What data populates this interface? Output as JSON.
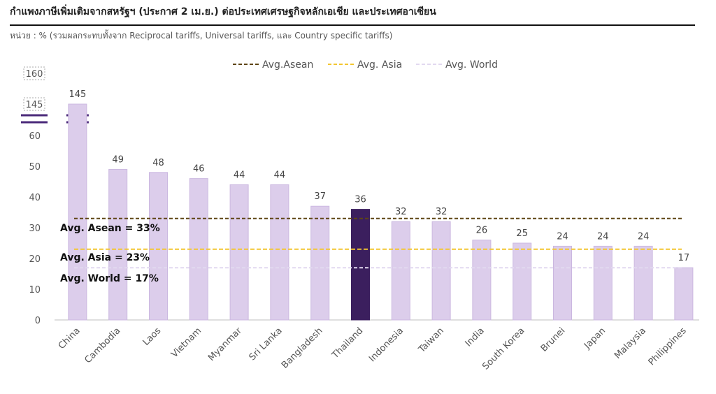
{
  "header": {
    "title": "กำแพงภาษีเพิ่มเติมจากสหรัฐฯ (ประกาศ 2 เม.ย.) ต่อประเทศเศรษฐกิจหลักเอเชีย และประเทศอาเซียน",
    "subtitle": "หน่วย : % (รวมผลกระทบทั้งจาก Reciprocal tariffs, Universal tariffs, และ Country specific tariffs)"
  },
  "chart_data": {
    "type": "bar",
    "categories": [
      "China",
      "Cambodia",
      "Laos",
      "Vietnam",
      "Myanmar",
      "Sri Lanka",
      "Bangladesh",
      "Thailand",
      "Indonesia",
      "Taiwan",
      "India",
      "South Korea",
      "Brunei",
      "Japan",
      "Malaysia",
      "Philippines"
    ],
    "values": [
      145,
      49,
      48,
      46,
      44,
      44,
      37,
      36,
      32,
      32,
      26,
      25,
      24,
      24,
      24,
      17
    ],
    "highlight_category": "Thailand",
    "bar_color": "#dccdeb",
    "highlight_color": "#3b1f5e",
    "y_axis": {
      "scale": "broken",
      "lower_ticks": [
        0,
        10,
        20,
        30,
        40,
        50,
        60
      ],
      "upper_ticks": [
        145,
        160
      ],
      "ylim": [
        0,
        160
      ]
    },
    "reference_lines": [
      {
        "name": "Avg.Asean",
        "value": 33,
        "color": "#5e4514",
        "style": "dashed",
        "annotation": "Avg. Asean = 33%"
      },
      {
        "name": "Avg. Asia",
        "value": 23,
        "color": "#f3c630",
        "style": "dashed",
        "annotation": "Avg. Asia = 23%"
      },
      {
        "name": "Avg. World",
        "value": 17,
        "color": "#e2d9f0",
        "style": "dashed",
        "annotation": "Avg. World = 17%"
      }
    ],
    "legend_position": "top-center",
    "grid": false
  }
}
